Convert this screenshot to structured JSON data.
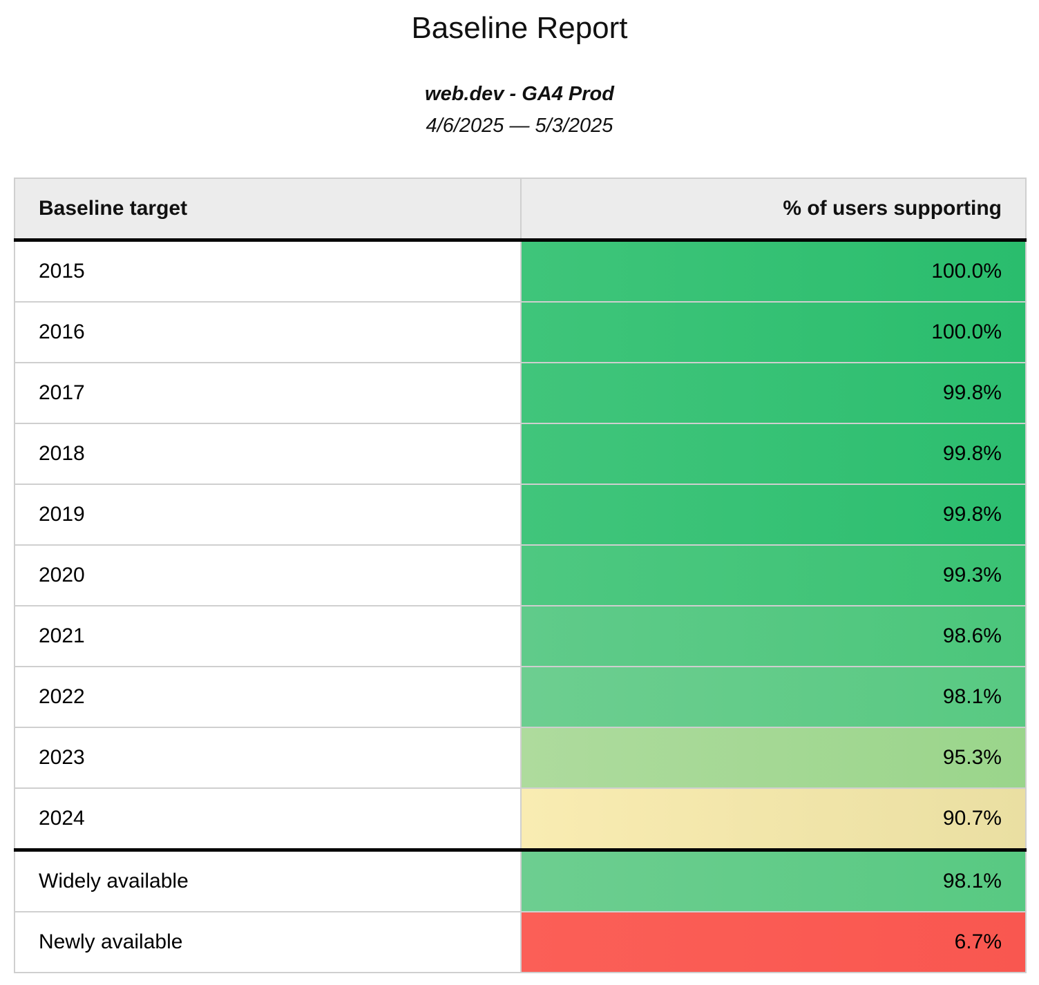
{
  "header": {
    "title": "Baseline Report",
    "subtitle": "web.dev - GA4 Prod",
    "date_range": "4/6/2025 — 5/3/2025"
  },
  "table": {
    "columns": [
      {
        "label": "Baseline target",
        "align": "left"
      },
      {
        "label": "% of users supporting",
        "align": "right"
      }
    ],
    "rows": [
      {
        "target": "2015",
        "pct": "100.0%",
        "color_left": "#3fc57a",
        "color_right": "#2abd6d",
        "section_break_above": false
      },
      {
        "target": "2016",
        "pct": "100.0%",
        "color_left": "#3fc57a",
        "color_right": "#2abd6d",
        "section_break_above": false
      },
      {
        "target": "2017",
        "pct": "99.8%",
        "color_left": "#41c57b",
        "color_right": "#2cbe6f",
        "section_break_above": false
      },
      {
        "target": "2018",
        "pct": "99.8%",
        "color_left": "#41c57b",
        "color_right": "#2cbe6f",
        "section_break_above": false
      },
      {
        "target": "2019",
        "pct": "99.8%",
        "color_left": "#41c57b",
        "color_right": "#2cbe6f",
        "section_break_above": false
      },
      {
        "target": "2020",
        "pct": "99.3%",
        "color_left": "#4ec881",
        "color_right": "#3ac273",
        "section_break_above": false
      },
      {
        "target": "2021",
        "pct": "98.6%",
        "color_left": "#60cb8a",
        "color_right": "#4bc67b",
        "section_break_above": false
      },
      {
        "target": "2022",
        "pct": "98.1%",
        "color_left": "#6dce90",
        "color_right": "#58c982",
        "section_break_above": false
      },
      {
        "target": "2023",
        "pct": "95.3%",
        "color_left": "#aedb9d",
        "color_right": "#9ad58b",
        "section_break_above": false
      },
      {
        "target": "2024",
        "pct": "90.7%",
        "color_left": "#f9ecb2",
        "color_right": "#eadfa2",
        "section_break_above": false
      },
      {
        "target": "Widely available",
        "pct": "98.1%",
        "color_left": "#6dce90",
        "color_right": "#58c982",
        "section_break_above": true
      },
      {
        "target": "Newly available",
        "pct": "6.7%",
        "color_left": "#fb5f57",
        "color_right": "#f95750",
        "section_break_above": false
      }
    ],
    "styles": {
      "header_bg": "#ececec",
      "row_border": "#cfcfcf",
      "section_border": "#000000"
    }
  }
}
